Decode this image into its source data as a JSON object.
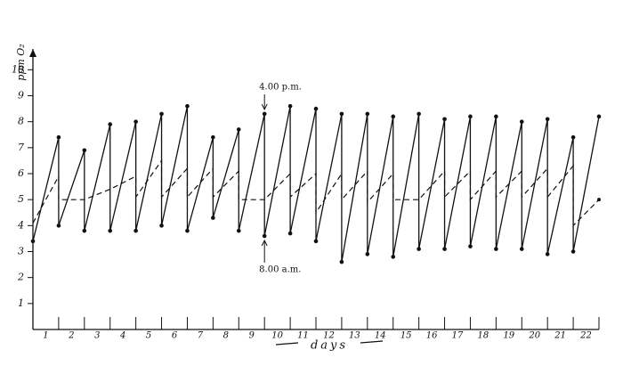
{
  "chart_data": {
    "type": "line",
    "ylabel": "ppm O₂",
    "xlabel": "days",
    "categories": [
      "1",
      "2",
      "3",
      "4",
      "5",
      "6",
      "7",
      "8",
      "9",
      "10",
      "11",
      "12",
      "13",
      "14",
      "15",
      "16",
      "17",
      "18",
      "19",
      "20",
      "21",
      "22"
    ],
    "xlim": [
      0.5,
      22.5
    ],
    "ylim": [
      0,
      10.8
    ],
    "yticks": [
      1,
      2,
      3,
      4,
      5,
      6,
      7,
      8,
      9,
      10
    ],
    "color": "#111111",
    "series": [
      {
        "style": "solid",
        "markers": true,
        "x": [
          0.5,
          1.5,
          1.5,
          2.5,
          2.5,
          3.5,
          3.5,
          4.5,
          4.5,
          5.5,
          5.5,
          6.5,
          6.5,
          7.5,
          7.5,
          8.5,
          8.5,
          9.5,
          9.5,
          10.5,
          10.5,
          11.5,
          11.5,
          12.5,
          12.5,
          13.5,
          13.5,
          14.5,
          14.5,
          15.5,
          15.5,
          16.5,
          16.5,
          17.5,
          17.5,
          18.5,
          18.5,
          19.5,
          19.5,
          20.5,
          20.5,
          21.5,
          21.5,
          22.5
        ],
        "values": [
          3.4,
          7.4,
          4.0,
          6.9,
          3.8,
          7.9,
          3.8,
          8.0,
          3.8,
          8.3,
          4.0,
          8.6,
          3.8,
          7.4,
          4.3,
          7.7,
          3.8,
          8.3,
          3.6,
          8.6,
          3.7,
          8.5,
          3.4,
          8.3,
          2.6,
          8.3,
          2.9,
          8.2,
          2.8,
          8.3,
          3.1,
          8.1,
          3.1,
          8.2,
          3.2,
          8.2,
          3.1,
          8.0,
          3.1,
          8.1,
          2.9,
          7.4,
          3.0,
          8.2
        ]
      },
      {
        "style": "dashed",
        "markers": false,
        "x": [
          0.5,
          1.5,
          1.5,
          2.5,
          3.5,
          4.5,
          4.5,
          5.5,
          5.5,
          6.5,
          6.5,
          7.5,
          7.5,
          8.5,
          8.5,
          9.5,
          10.5,
          10.5,
          11.5,
          11.5,
          12.5,
          12.5,
          13.5,
          13.5,
          14.5,
          14.5,
          15.5,
          16.5,
          16.5,
          17.5,
          17.5,
          18.5,
          18.5,
          19.5,
          19.5,
          20.5,
          20.5,
          21.5,
          21.5,
          22.5
        ],
        "values": [
          4.1,
          5.9,
          5.0,
          5.0,
          5.4,
          5.9,
          5.1,
          6.5,
          5.1,
          6.2,
          5.1,
          6.2,
          5.1,
          6.1,
          5.0,
          5.0,
          6.0,
          5.1,
          6.0,
          4.5,
          6.0,
          5.0,
          6.1,
          4.9,
          6.0,
          5.0,
          5.0,
          6.1,
          5.1,
          6.1,
          5.0,
          6.1,
          5.1,
          6.1,
          5.1,
          6.2,
          5.1,
          6.3,
          4.0,
          5.0
        ]
      }
    ],
    "annotations": [
      {
        "text": "4.00 p.m.",
        "x": 9.5,
        "y": 8.3,
        "position": "above"
      },
      {
        "text": "8.00 a.m.",
        "x": 9.5,
        "y": 3.6,
        "position": "below"
      }
    ]
  }
}
